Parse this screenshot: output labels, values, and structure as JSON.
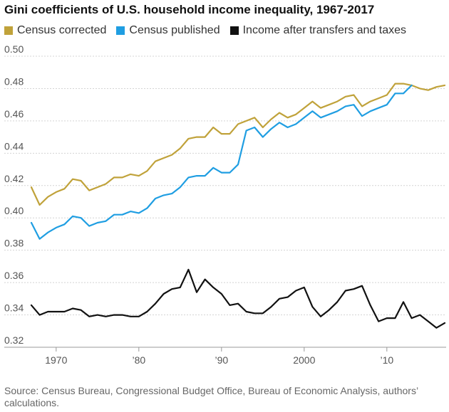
{
  "chart_data": {
    "type": "line",
    "title": "Gini coefficients of U.S. household income inequality, 1967-2017",
    "xlabel": "",
    "ylabel": "",
    "xlim": [
      1967,
      2017
    ],
    "ylim": [
      0.32,
      0.5
    ],
    "yticks": [
      0.32,
      0.34,
      0.36,
      0.38,
      0.4,
      0.42,
      0.44,
      0.46,
      0.48,
      0.5
    ],
    "ytick_labels": [
      "0.32",
      "0.34",
      "0.36",
      "0.38",
      "0.40",
      "0.42",
      "0.44",
      "0.46",
      "0.48",
      "0.50"
    ],
    "xticks": [
      1970,
      1980,
      1990,
      2000,
      2010
    ],
    "xtick_labels": [
      "1970",
      "’80",
      "’90",
      "2000",
      "’10"
    ],
    "grid": true,
    "legend_position": "top",
    "x": [
      1967,
      1968,
      1969,
      1970,
      1971,
      1972,
      1973,
      1974,
      1975,
      1976,
      1977,
      1978,
      1979,
      1980,
      1981,
      1982,
      1983,
      1984,
      1985,
      1986,
      1987,
      1988,
      1989,
      1990,
      1991,
      1992,
      1993,
      1994,
      1995,
      1996,
      1997,
      1998,
      1999,
      2000,
      2001,
      2002,
      2003,
      2004,
      2005,
      2006,
      2007,
      2008,
      2009,
      2010,
      2011,
      2012,
      2013,
      2014,
      2015,
      2016,
      2017
    ],
    "series": [
      {
        "name": "Census corrected",
        "color": "#c0a23a",
        "values": [
          0.419,
          0.408,
          0.413,
          0.416,
          0.418,
          0.424,
          0.423,
          0.417,
          0.419,
          0.421,
          0.425,
          0.425,
          0.427,
          0.426,
          0.429,
          0.435,
          0.437,
          0.439,
          0.443,
          0.449,
          0.45,
          0.45,
          0.456,
          0.452,
          0.452,
          0.458,
          0.46,
          0.462,
          0.456,
          0.461,
          0.465,
          0.462,
          0.464,
          0.468,
          0.472,
          0.468,
          0.47,
          0.472,
          0.475,
          0.476,
          0.469,
          0.472,
          0.474,
          0.476,
          0.483,
          0.483,
          0.482,
          0.48,
          0.479,
          0.481,
          0.482
        ]
      },
      {
        "name": "Census published",
        "color": "#1f9ee2",
        "values": [
          0.397,
          0.387,
          0.391,
          0.394,
          0.396,
          0.401,
          0.4,
          0.395,
          0.397,
          0.398,
          0.402,
          0.402,
          0.404,
          0.403,
          0.406,
          0.412,
          0.414,
          0.415,
          0.419,
          0.425,
          0.426,
          0.426,
          0.431,
          0.428,
          0.428,
          0.433,
          0.454,
          0.456,
          0.45,
          0.455,
          0.459,
          0.456,
          0.458,
          0.462,
          0.466,
          0.462,
          0.464,
          0.466,
          0.469,
          0.47,
          0.463,
          0.466,
          0.468,
          0.47,
          0.477,
          0.477,
          0.482,
          null,
          null,
          null,
          null
        ]
      },
      {
        "name": "Income after transfers and taxes",
        "color": "#111111",
        "values": [
          0.346,
          0.34,
          0.342,
          0.342,
          0.342,
          0.344,
          0.343,
          0.339,
          0.34,
          0.339,
          0.34,
          0.34,
          0.339,
          0.339,
          0.342,
          0.347,
          0.353,
          0.356,
          0.357,
          0.368,
          0.354,
          0.362,
          0.357,
          0.353,
          0.346,
          0.347,
          0.342,
          0.341,
          0.341,
          0.345,
          0.35,
          0.351,
          0.355,
          0.357,
          0.345,
          0.339,
          0.343,
          0.348,
          0.355,
          0.356,
          0.358,
          0.346,
          0.336,
          0.338,
          0.338,
          0.348,
          0.338,
          0.34,
          0.336,
          0.332,
          0.335
        ]
      }
    ]
  },
  "legend": [
    {
      "label": "Census corrected",
      "color": "#c0a23a"
    },
    {
      "label": "Census published",
      "color": "#1f9ee2"
    },
    {
      "label": "Income after transfers and taxes",
      "color": "#111111"
    }
  ],
  "source": "Source: Census Bureau, Congressional Budget Office, Bureau of Economic Analysis, authors’ calculations."
}
